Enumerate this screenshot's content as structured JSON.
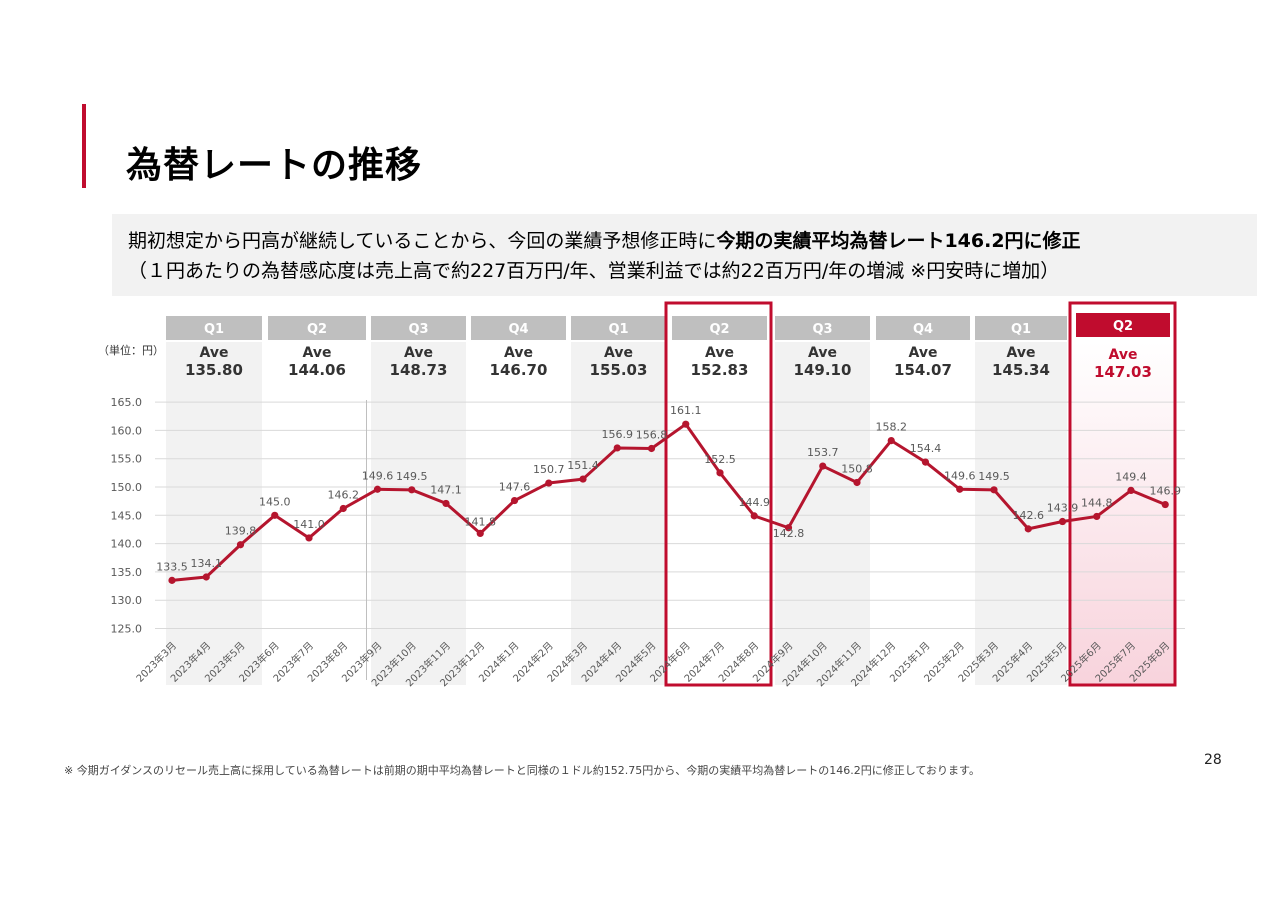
{
  "title": "為替レートの推移",
  "lead": {
    "line1_normal": "期初想定から円高が継続していることから、今回の業績予想修正時に",
    "line1_bold": "今期の実績平均為替レート146.2円に修正",
    "line2": "（１円あたりの為替感応度は売上高で約227百万円/年、営業利益では約22百万円/年の増減 ※円安時に増加）"
  },
  "unit_label": "（単位：円）",
  "footnote": "※ 今期ガイダンスのリセール売上高に採用している為替レートは前期の期中平均為替レートと同様の１ドル約152.75円から、今期の実績平均為替レートの146.2円に修正しております。",
  "page_number": "28",
  "colors": {
    "accent": "#c00c2e",
    "line": "#b5152e",
    "header_gray": "#bfbfbf",
    "band": "#f2f2f2"
  },
  "quarters": [
    {
      "label": "Q1",
      "ave_label": "Ave",
      "ave": "135.80"
    },
    {
      "label": "Q2",
      "ave_label": "Ave",
      "ave": "144.06"
    },
    {
      "label": "Q3",
      "ave_label": "Ave",
      "ave": "148.73"
    },
    {
      "label": "Q4",
      "ave_label": "Ave",
      "ave": "146.70"
    },
    {
      "label": "Q1",
      "ave_label": "Ave",
      "ave": "155.03"
    },
    {
      "label": "Q2",
      "ave_label": "Ave",
      "ave": "152.83"
    },
    {
      "label": "Q3",
      "ave_label": "Ave",
      "ave": "149.10"
    },
    {
      "label": "Q4",
      "ave_label": "Ave",
      "ave": "154.07"
    },
    {
      "label": "Q1",
      "ave_label": "Ave",
      "ave": "145.34"
    },
    {
      "label": "Q2",
      "ave_label": "Ave",
      "ave": "147.03"
    }
  ],
  "chart_data": {
    "type": "line",
    "title": "為替レートの推移",
    "ylabel": "（単位：円）",
    "ylim": [
      125.0,
      165.0
    ],
    "yticks": [
      "165.0",
      "160.0",
      "155.0",
      "150.0",
      "145.0",
      "140.0",
      "135.0",
      "130.0",
      "125.0"
    ],
    "categories": [
      "2023年3月",
      "2023年4月",
      "2023年5月",
      "2023年6月",
      "2023年7月",
      "2023年8月",
      "2023年9月",
      "2023年10月",
      "2023年11月",
      "2023年12月",
      "2024年1月",
      "2024年2月",
      "2024年3月",
      "2024年4月",
      "2024年5月",
      "2024年6月",
      "2024年7月",
      "2024年8月",
      "2024年9月",
      "2024年10月",
      "2024年11月",
      "2024年12月",
      "2025年1月",
      "2025年2月",
      "2025年3月",
      "2025年4月",
      "2025年5月",
      "2025年6月",
      "2025年7月",
      "2025年8月"
    ],
    "series": [
      {
        "name": "為替レート",
        "values": [
          133.5,
          134.1,
          139.8,
          145.0,
          141.0,
          146.2,
          149.6,
          149.5,
          147.1,
          141.8,
          147.6,
          150.7,
          151.4,
          156.9,
          156.8,
          161.1,
          152.5,
          144.9,
          142.8,
          153.7,
          150.8,
          158.2,
          154.4,
          149.6,
          149.5,
          142.6,
          143.9,
          144.8,
          149.4,
          146.9
        ],
        "labels": [
          "133.5",
          "134.1",
          "139.8",
          "145.0",
          "141.0",
          "146.2",
          "149.6",
          "149.5",
          "147.1",
          "141.8",
          "147.6",
          "150.7",
          "151.4",
          "156.9",
          "156.8",
          "161.1",
          "152.5",
          "144.9",
          "142.8",
          "153.7",
          "150.8",
          "158.2",
          "154.4",
          "149.6",
          "149.5",
          "142.6",
          "143.9",
          "144.8",
          "149.4",
          "146.9"
        ]
      }
    ]
  }
}
